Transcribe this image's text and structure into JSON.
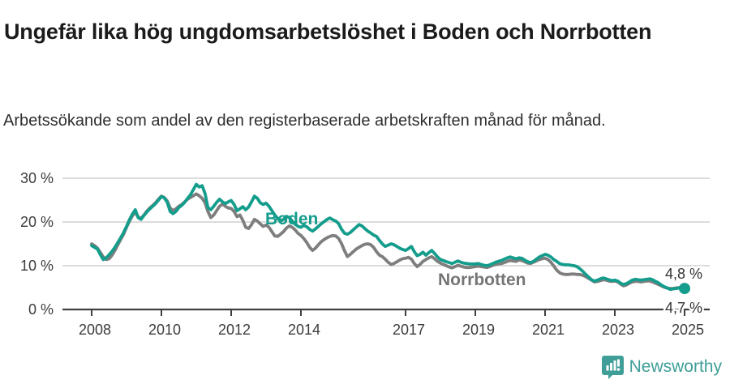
{
  "header": {
    "title": "Ungefär lika hög ungdomsarbetslöshet i Boden och Norrbotten",
    "subtitle": "Arbetssökande som andel av den registerbaserade arbetskraften månad för månad."
  },
  "chart_data": {
    "type": "line",
    "unit": "%",
    "x_start_year": 2008,
    "x_start_month": 1,
    "frequency": "monthly",
    "grid": "horizontal",
    "legend_position": "inline-labels",
    "ylim": [
      0,
      32
    ],
    "yticks": [
      {
        "value": 0,
        "label": "0 %"
      },
      {
        "value": 10,
        "label": "10 %"
      },
      {
        "value": 20,
        "label": "20 %"
      },
      {
        "value": 30,
        "label": "30 %"
      }
    ],
    "xticks": [
      {
        "value": 2008,
        "label": "2008"
      },
      {
        "value": 2010,
        "label": "2010"
      },
      {
        "value": 2012,
        "label": "2012"
      },
      {
        "value": 2014,
        "label": "2014"
      },
      {
        "value": 2017,
        "label": "2017"
      },
      {
        "value": 2019,
        "label": "2019"
      },
      {
        "value": 2021,
        "label": "2021"
      },
      {
        "value": 2023,
        "label": "2023"
      },
      {
        "value": 2025,
        "label": "2025"
      }
    ],
    "series": [
      {
        "name": "Norrbotten",
        "color": "#7e7e7e",
        "end_label": "4,7 %",
        "end_dot": false,
        "values": [
          15.0,
          14.6,
          14.0,
          13.0,
          12.0,
          11.4,
          11.6,
          12.4,
          13.5,
          14.8,
          16.0,
          17.2,
          18.8,
          20.2,
          21.4,
          22.2,
          21.2,
          20.8,
          21.6,
          22.5,
          23.2,
          23.8,
          24.4,
          25.2,
          25.9,
          25.6,
          24.8,
          23.2,
          22.6,
          23.0,
          23.6,
          24.0,
          24.6,
          25.2,
          25.6,
          26.0,
          26.4,
          26.0,
          25.4,
          24.4,
          22.4,
          21.0,
          21.6,
          22.6,
          23.6,
          24.1,
          23.6,
          23.2,
          23.1,
          22.4,
          21.2,
          21.6,
          20.4,
          18.8,
          18.5,
          19.4,
          20.6,
          20.2,
          19.6,
          19.0,
          19.3,
          18.8,
          17.8,
          16.8,
          16.7,
          17.2,
          17.8,
          18.6,
          19.1,
          18.8,
          18.2,
          17.4,
          16.9,
          16.2,
          15.3,
          14.2,
          13.5,
          14.0,
          14.8,
          15.5,
          16.0,
          16.4,
          16.7,
          16.9,
          16.8,
          16.2,
          15.0,
          13.4,
          12.1,
          12.6,
          13.2,
          13.8,
          14.2,
          14.6,
          14.9,
          15.0,
          14.8,
          14.2,
          13.2,
          12.4,
          12.1,
          11.5,
          10.8,
          10.3,
          10.5,
          10.9,
          11.3,
          11.6,
          11.7,
          11.9,
          11.5,
          10.5,
          9.8,
          10.3,
          11.0,
          11.4,
          11.8,
          12.1,
          11.6,
          11.0,
          10.6,
          10.3,
          10.0,
          9.7,
          9.5,
          9.8,
          10.1,
          9.9,
          9.7,
          9.6,
          9.6,
          9.7,
          9.8,
          9.9,
          9.8,
          9.7,
          9.6,
          9.8,
          10.1,
          10.3,
          10.4,
          10.5,
          10.7,
          11.0,
          11.2,
          11.1,
          11.0,
          11.3,
          11.2,
          10.9,
          10.6,
          10.5,
          10.8,
          11.1,
          11.4,
          11.6,
          11.7,
          11.4,
          10.8,
          9.9,
          9.0,
          8.4,
          8.1,
          8.0,
          8.0,
          8.1,
          8.1,
          8.0,
          8.0,
          7.8,
          7.5,
          7.1,
          6.7,
          6.3,
          6.4,
          6.6,
          6.8,
          6.7,
          6.5,
          6.4,
          6.5,
          6.3,
          5.8,
          5.4,
          5.6,
          6.0,
          6.3,
          6.4,
          6.4,
          6.3,
          6.4,
          6.5,
          6.5,
          6.3,
          6.0,
          5.7,
          5.4,
          5.1,
          4.9,
          4.8,
          4.8,
          4.9,
          5.0,
          4.9,
          4.7
        ]
      },
      {
        "name": "Boden",
        "color": "#149d8c",
        "end_label": "4,8 %",
        "end_dot": true,
        "values": [
          14.6,
          14.2,
          13.8,
          12.5,
          11.4,
          11.8,
          12.5,
          13.3,
          14.2,
          15.3,
          16.4,
          17.6,
          19.0,
          20.5,
          21.8,
          22.8,
          21.0,
          20.6,
          21.5,
          22.3,
          23.0,
          23.6,
          24.2,
          25.0,
          25.8,
          25.5,
          24.5,
          22.4,
          21.9,
          22.4,
          23.3,
          23.8,
          24.5,
          25.4,
          26.2,
          27.4,
          28.6,
          28.0,
          28.3,
          26.5,
          23.3,
          22.8,
          23.6,
          24.5,
          25.2,
          24.6,
          24.2,
          24.6,
          24.9,
          24.0,
          22.6,
          23.0,
          23.5,
          22.8,
          23.4,
          24.6,
          25.9,
          25.4,
          24.4,
          24.0,
          24.3,
          23.6,
          22.6,
          21.6,
          20.8,
          20.2,
          20.6,
          21.3,
          21.0,
          20.2,
          19.5,
          19.0,
          18.8,
          19.2,
          18.9,
          18.3,
          17.9,
          18.4,
          19.0,
          19.6,
          20.1,
          20.6,
          20.9,
          20.5,
          20.2,
          19.6,
          18.3,
          17.4,
          17.2,
          17.6,
          18.2,
          18.8,
          19.4,
          19.1,
          18.5,
          17.9,
          17.5,
          17.0,
          16.7,
          15.8,
          15.0,
          14.4,
          14.7,
          15.0,
          14.8,
          14.4,
          14.0,
          13.7,
          13.5,
          13.9,
          14.4,
          13.2,
          12.3,
          12.6,
          13.1,
          12.4,
          13.0,
          13.5,
          12.8,
          12.0,
          11.4,
          11.2,
          10.9,
          10.7,
          10.5,
          10.8,
          11.1,
          10.8,
          10.6,
          10.5,
          10.4,
          10.4,
          10.4,
          10.5,
          10.3,
          10.1,
          10.0,
          10.2,
          10.5,
          10.8,
          11.0,
          11.2,
          11.5,
          11.8,
          12.0,
          11.8,
          11.6,
          11.8,
          11.7,
          11.3,
          10.9,
          10.7,
          11.0,
          11.5,
          12.0,
          12.3,
          12.6,
          12.4,
          12.0,
          11.4,
          11.0,
          10.5,
          10.3,
          10.2,
          10.2,
          10.1,
          10.0,
          9.8,
          9.3,
          8.7,
          8.0,
          7.4,
          6.8,
          6.5,
          6.7,
          7.0,
          7.2,
          7.0,
          6.8,
          6.6,
          6.7,
          6.5,
          6.0,
          5.7,
          5.9,
          6.3,
          6.7,
          6.9,
          6.8,
          6.7,
          6.8,
          6.9,
          7.0,
          6.8,
          6.4,
          6.1,
          5.6,
          5.2,
          4.9,
          4.6,
          4.7,
          4.8,
          4.9,
          4.8,
          4.8
        ]
      }
    ],
    "styles": {
      "grid_color": "#dcdcdc",
      "axis_color": "#404040",
      "label_color": "#3c3c3c",
      "end_label_color": "#333333"
    }
  },
  "footer": {
    "brand": "Newsworthy",
    "brand_color": "#3f9e97"
  }
}
